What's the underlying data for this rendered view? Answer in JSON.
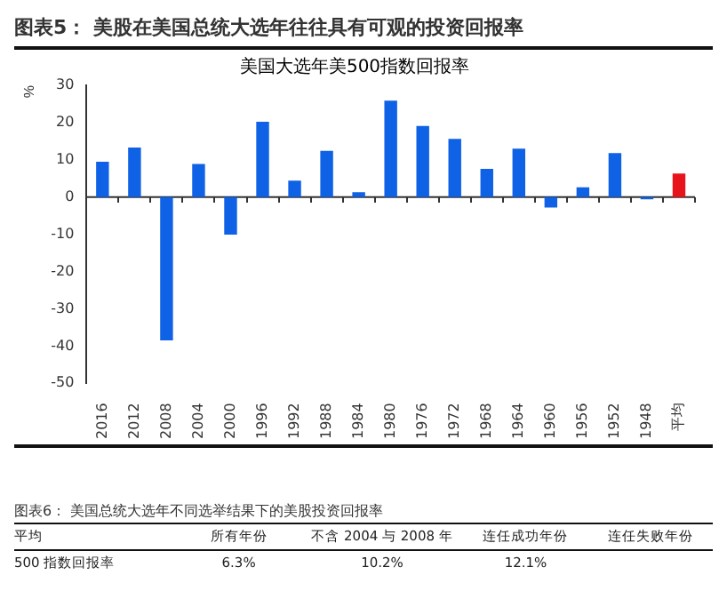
{
  "chart_data": {
    "type": "bar",
    "title": "图表5：  美股在美国总统大选年往往具有可观的投资回报率",
    "subtitle": "美国大选年美500指数回报率",
    "ylabel": "%",
    "categories": [
      "2016",
      "2012",
      "2008",
      "2004",
      "2000",
      "1996",
      "1992",
      "1988",
      "1984",
      "1980",
      "1976",
      "1972",
      "1968",
      "1964",
      "1960",
      "1956",
      "1952",
      "1948",
      "平均"
    ],
    "values": [
      9.5,
      13.3,
      -38.5,
      8.9,
      -10.1,
      20.2,
      4.4,
      12.4,
      1.3,
      25.9,
      19.1,
      15.6,
      7.6,
      13.0,
      -2.8,
      2.6,
      11.8,
      -0.6,
      6.3
    ],
    "colors": [
      "#0f62e6",
      "#0f62e6",
      "#0f62e6",
      "#0f62e6",
      "#0f62e6",
      "#0f62e6",
      "#0f62e6",
      "#0f62e6",
      "#0f62e6",
      "#0f62e6",
      "#0f62e6",
      "#0f62e6",
      "#0f62e6",
      "#0f62e6",
      "#0f62e6",
      "#0f62e6",
      "#0f62e6",
      "#0f62e6",
      "#e8141c"
    ],
    "ref_lines": [
      {
        "axis": "y",
        "value": 0,
        "color": "#333333"
      }
    ],
    "ylim": [
      -50,
      30
    ],
    "yticks": [
      -50,
      -40,
      -30,
      -20,
      -10,
      0,
      10,
      20,
      30
    ],
    "grid": false,
    "annotations": [
      "图表6：  美国总统大选年不同选举结果下的美股投资回报率",
      "平均",
      "所有年份",
      "不含 2004 与 2008 年",
      "连任成功年份",
      "连任失败年份",
      "500 指数回报率",
      "6.3%",
      "10.2%",
      "12.1%"
    ]
  }
}
